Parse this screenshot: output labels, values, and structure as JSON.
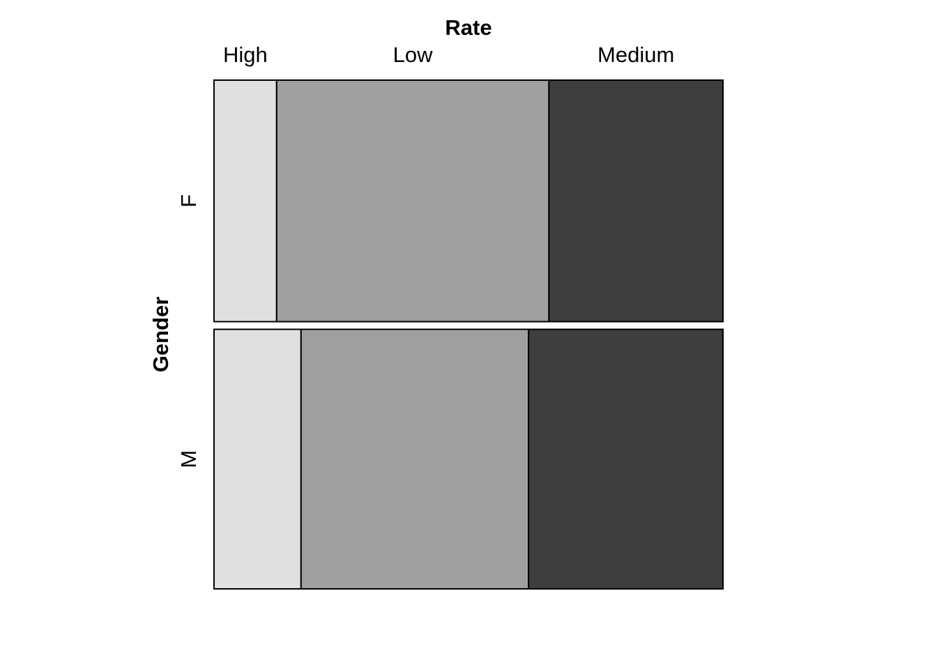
{
  "chart_data": {
    "type": "mosaic",
    "xlabel": "Rate",
    "ylabel": "Gender",
    "column_categories": [
      "High",
      "Low",
      "Medium"
    ],
    "row_categories": [
      "F",
      "M"
    ],
    "row_proportions": [
      0.482,
      0.518
    ],
    "series": [
      {
        "name": "F",
        "values": [
          0.123,
          0.535,
          0.342
        ]
      },
      {
        "name": "M",
        "values": [
          0.171,
          0.447,
          0.382
        ]
      }
    ],
    "colors": {
      "High": "#e0e0e0",
      "Low": "#a0a0a0",
      "Medium": "#3e3e3e"
    }
  }
}
